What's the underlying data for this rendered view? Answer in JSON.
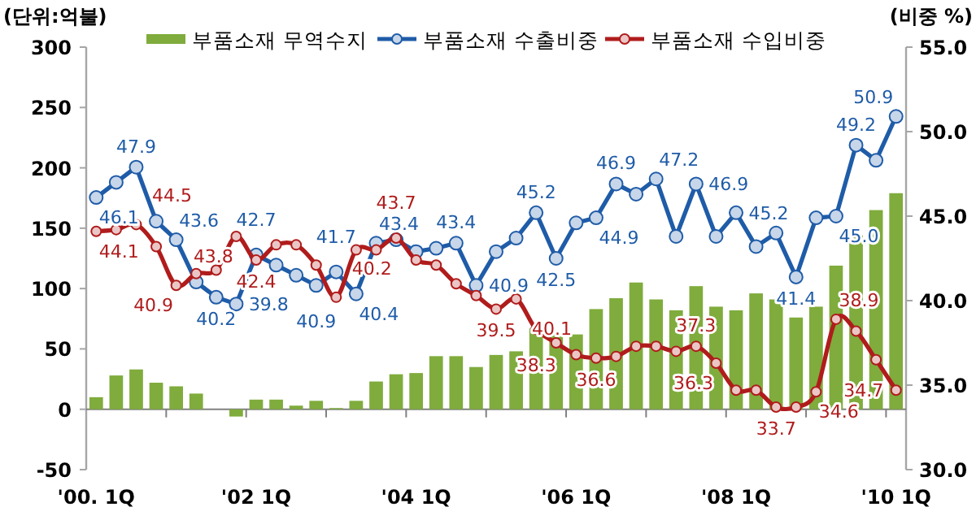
{
  "chart_data": {
    "type": "bar",
    "categories": [
      "'00. 1Q",
      null,
      null,
      null,
      null,
      null,
      null,
      null,
      "'02 1Q",
      null,
      null,
      null,
      null,
      null,
      null,
      null,
      "'04 1Q",
      null,
      null,
      null,
      null,
      null,
      null,
      null,
      "'06 1Q",
      null,
      null,
      null,
      null,
      null,
      null,
      null,
      "'08 1Q",
      null,
      null,
      null,
      null,
      null,
      null,
      null,
      "'10 1Q"
    ],
    "series": [
      {
        "name": "부품소재 무역수지",
        "color": "#7fac3c",
        "values": [
          10,
          28,
          33,
          22,
          19,
          13,
          0,
          -6,
          8,
          8,
          3,
          7,
          1,
          7,
          23,
          29,
          30,
          44,
          44,
          35,
          45,
          48,
          67,
          63,
          62,
          83,
          92,
          105,
          91,
          82,
          102,
          85,
          82,
          96,
          91,
          76,
          85,
          119,
          144,
          165,
          179
        ]
      },
      {
        "name": "부품소재 수출비중",
        "type": "line",
        "axis": "y2",
        "marker": "circle",
        "color": "#1f5ca8",
        "values": [
          46.1,
          47.0,
          47.9,
          44.7,
          43.6,
          41.1,
          40.2,
          39.8,
          42.7,
          42.1,
          41.5,
          40.9,
          41.7,
          40.4,
          43.4,
          43.6,
          42.9,
          43.1,
          43.4,
          40.9,
          42.9,
          43.7,
          45.2,
          42.5,
          44.6,
          44.9,
          46.9,
          46.3,
          47.2,
          43.8,
          46.9,
          43.8,
          45.2,
          43.2,
          44.0,
          41.4,
          44.9,
          45.0,
          49.2,
          48.3,
          50.9
        ],
        "value_labels": [
          "46.1",
          null,
          "47.9",
          null,
          "43.6",
          null,
          "40.2",
          "39.8",
          "42.7",
          null,
          null,
          "40.9",
          "41.7",
          "40.4",
          "43.4",
          null,
          null,
          null,
          "43.4",
          "40.9",
          null,
          null,
          "45.2",
          "42.5",
          null,
          "44.9",
          "46.9",
          null,
          "47.2",
          null,
          "46.9",
          null,
          "45.2",
          null,
          null,
          "41.4",
          null,
          "45.0",
          "49.2",
          null,
          "50.9"
        ]
      },
      {
        "name": "부품소재 수입비중",
        "type": "line",
        "axis": "y2",
        "marker": "circle",
        "color": "#b01c1c",
        "values": [
          44.1,
          44.2,
          44.5,
          43.2,
          40.9,
          41.6,
          41.8,
          43.8,
          42.4,
          43.3,
          43.3,
          42.1,
          40.2,
          43.0,
          43.0,
          43.7,
          42.4,
          42.1,
          41.0,
          40.3,
          39.5,
          40.1,
          38.3,
          37.5,
          36.8,
          36.6,
          36.7,
          37.3,
          37.3,
          37.0,
          37.3,
          36.3,
          34.7,
          34.7,
          33.7,
          33.7,
          34.6,
          38.9,
          38.2,
          36.5,
          34.7
        ],
        "value_labels": [
          "44.1",
          null,
          "44.5",
          null,
          "40.9",
          null,
          null,
          "43.8",
          "42.4",
          null,
          null,
          null,
          "40.2",
          null,
          null,
          "43.7",
          null,
          null,
          null,
          null,
          "39.5",
          "40.1",
          "38.3",
          null,
          null,
          "36.6",
          null,
          null,
          null,
          null,
          "37.3",
          "36.3",
          null,
          null,
          "33.7",
          null,
          "34.6",
          "38.9",
          null,
          null,
          "34.7"
        ]
      }
    ],
    "ylabel": "(단위:억불)",
    "y2label": "(비중 %)",
    "ylim": [
      -50,
      300
    ],
    "yticks": [
      -50,
      0,
      50,
      100,
      150,
      200,
      250,
      300
    ],
    "y2lim": [
      30,
      55
    ],
    "y2ticks": [
      {
        "value": 30,
        "label": "30.0"
      },
      {
        "value": 35,
        "label": "35.0"
      },
      {
        "value": 40,
        "label": "40.0"
      },
      {
        "value": 45,
        "label": "45.0"
      },
      {
        "value": 50,
        "label": "50.0"
      },
      {
        "value": 55,
        "label": "55.0"
      }
    ],
    "legend": "top"
  }
}
